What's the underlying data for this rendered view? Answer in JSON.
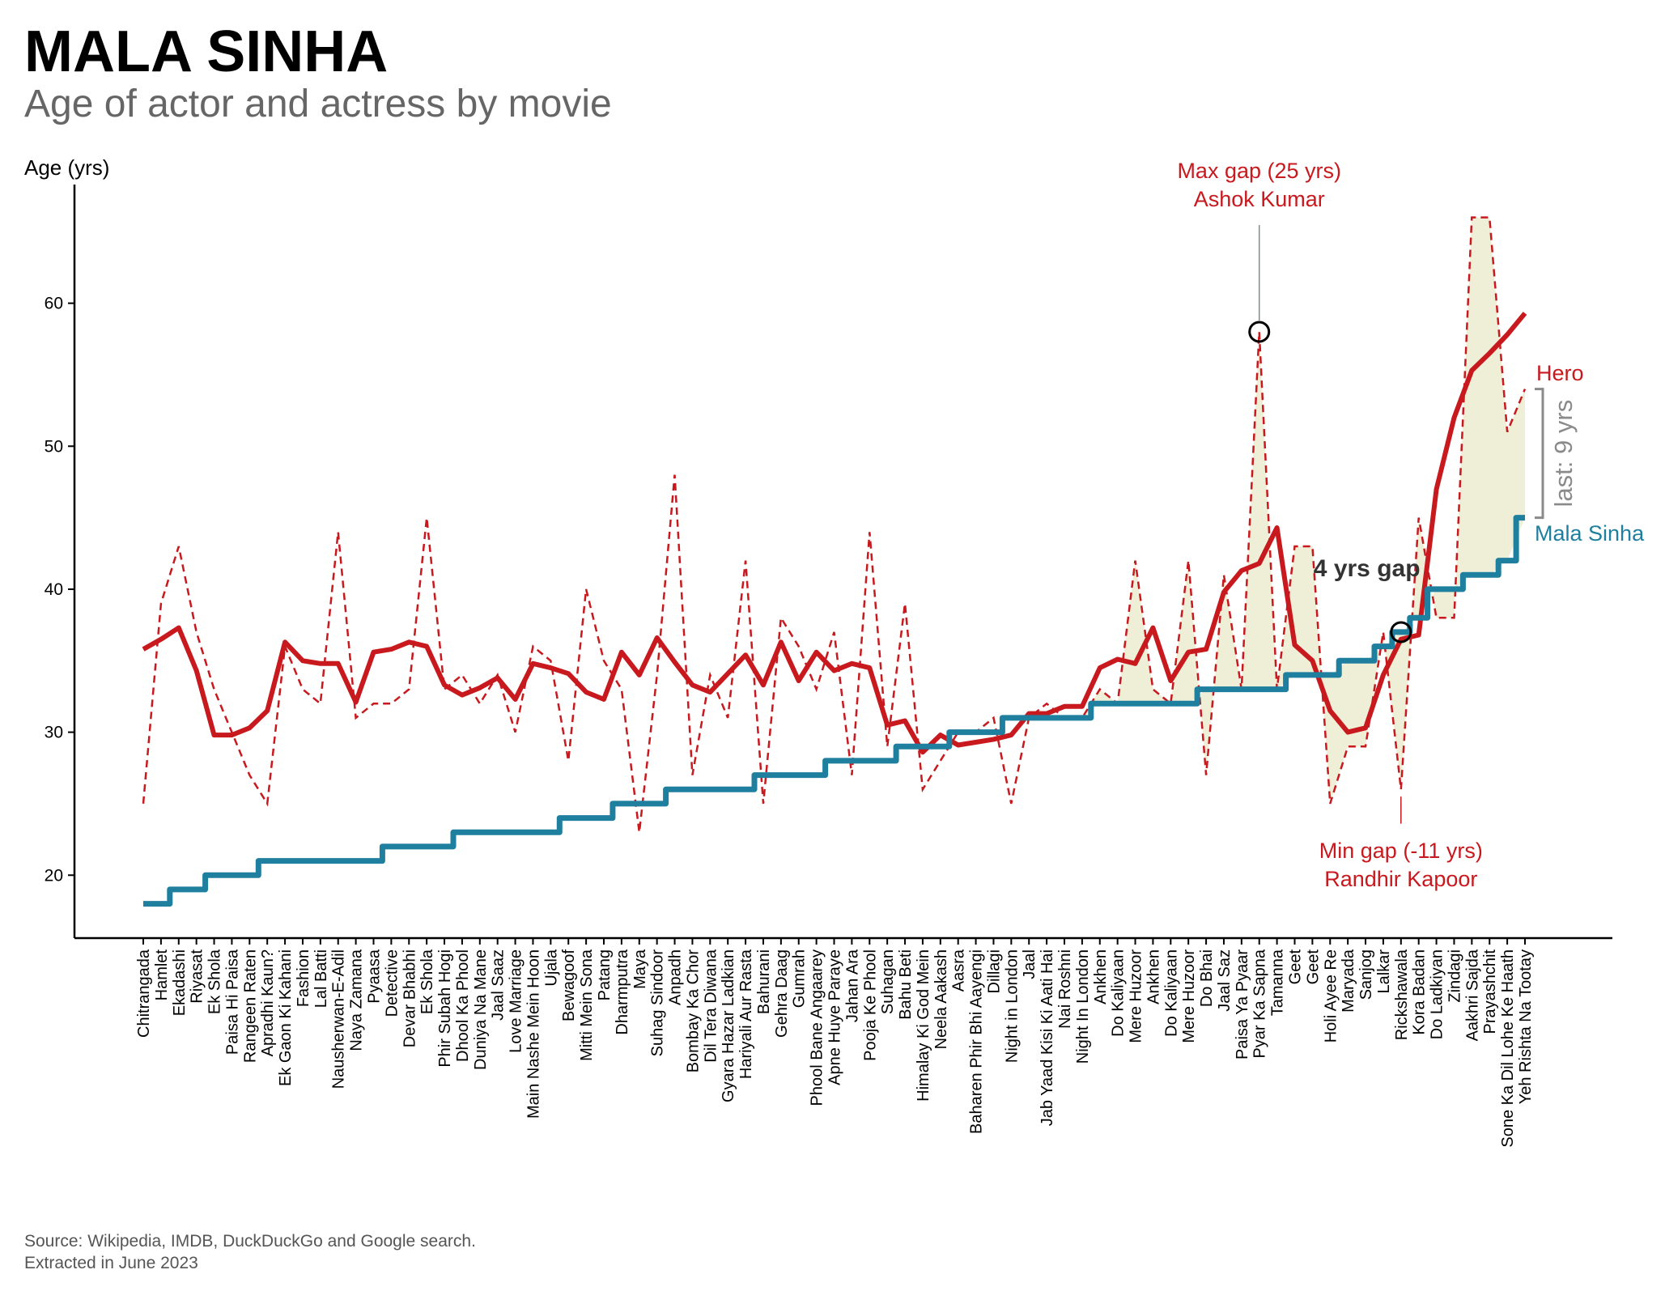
{
  "header": {
    "title": "MALA SINHA",
    "subtitle": "Age of actor and actress by movie"
  },
  "footer": {
    "source_line1": "Source: Wikipedia, IMDB, DuckDuckGo and Google search.",
    "source_line2": "Extracted in June 2023"
  },
  "annotations": {
    "max_gap_line1": "Max gap (25 yrs)",
    "max_gap_line2": "Ashok Kumar",
    "min_gap_line1": "Min gap (-11 yrs)",
    "min_gap_line2": "Randhir Kapoor",
    "hero_label": "Hero",
    "actress_label": "Mala Sinha",
    "gap_label": "4 yrs gap",
    "last_label": "last: 9 yrs"
  },
  "colors": {
    "hero": "#c8191e",
    "actress": "#1e7f9e",
    "gap_fill": "#efeed6",
    "axis": "#000000",
    "bracket": "#8a8a8a"
  },
  "chart_data": {
    "type": "line",
    "ylabel": "Age (yrs)",
    "xlabel": "",
    "ylim": [
      15.6,
      68.3
    ],
    "yticks": [
      20,
      30,
      40,
      50,
      60
    ],
    "grid": false,
    "categories": [
      "Chitrangada",
      "Hamlet",
      "Ekadashi",
      "Riyasat",
      "Ek Shola",
      "Paisa Hi Paisa",
      "Rangeen Raten",
      "Apradhi Kaun?",
      "Ek Gaon Ki Kahani",
      "Fashion",
      "Lal Batti",
      "Nausherwan-E-Adil",
      "Naya Zamana",
      "Pyaasa",
      "Detective",
      "Devar Bhabhi",
      "Ek Shola",
      "Phir Subah Hogi",
      "Dhool Ka Phool",
      "Duniya Na Mane",
      "Jaal Saaz",
      "Love Marriage",
      "Main Nashe Mein Hoon",
      "Ujala",
      "Bewagoof",
      "Mitti Mein Sona",
      "Patang",
      "Dharmputra",
      "Maya",
      "Suhag Sindoor",
      "Anpadh",
      "Bombay Ka Chor",
      "Dil Tera Diwana",
      "Gyara Hazar Ladkian",
      "Hariyali Aur Rasta",
      "Bahurani",
      "Gehra Daag",
      "Gumrah",
      "Phool Bane Angaarey",
      "Apne Huye Paraye",
      "Jahan Ara",
      "Pooja Ke Phool",
      "Suhagan",
      "Bahu Beti",
      "Himalay Ki God Mein",
      "Neela Aakash",
      "Aasra",
      "Baharen Phir Bhi Aayengi",
      "Dillagi",
      "Night in London",
      "Jaal",
      "Jab Yaad Kisi Ki Aati Hai",
      "Nai Roshni",
      "Night In London",
      "Ankhen",
      "Do Kaliyaan",
      "Mere Huzoor",
      "Ankhen",
      "Do Kaliyaan",
      "Mere Huzoor",
      "Do Bhai",
      "Jaal Saz",
      "Paisa Ya Pyaar",
      "Pyar Ka Sapna",
      "Tamanna",
      "Geet",
      "Geet",
      "Holi Ayee Re",
      "Maryada",
      "Sanjog",
      "Lalkar",
      "Rickshawala",
      "Kora Badan",
      "Do Ladkiyan",
      "Zindagi",
      "Aakhri Sajda",
      "Prayashchit",
      "Sone Ka Dil Lohe Ke Haath",
      "Yeh Rishta Na Tootay"
    ],
    "series": [
      {
        "name": "Hero",
        "style": "dashed",
        "values": [
          25,
          39,
          43,
          37,
          33,
          30,
          27,
          25,
          36,
          33,
          32,
          44,
          31,
          32,
          32,
          33,
          45,
          33,
          34,
          32,
          34,
          30,
          36,
          35,
          28,
          40,
          35,
          33,
          23,
          34,
          48,
          27,
          34,
          31,
          42,
          25,
          38,
          36,
          33,
          37,
          27,
          44,
          29,
          39,
          26,
          28,
          30,
          30,
          31,
          25,
          31,
          32,
          31,
          31,
          33,
          32,
          42,
          33,
          32,
          42,
          27,
          41,
          33,
          58,
          33,
          43,
          43,
          25,
          29,
          29,
          37,
          26,
          45,
          38,
          38,
          66,
          66,
          51,
          54
        ]
      },
      {
        "name": "Hero",
        "style": "rolling average",
        "values": [
          35.8,
          36.5,
          37.3,
          34.3,
          29.8,
          29.8,
          30.3,
          31.5,
          36.3,
          35.0,
          34.8,
          34.8,
          32.1,
          35.6,
          35.8,
          36.3,
          36.0,
          33.3,
          32.6,
          33.1,
          33.8,
          32.3,
          34.8,
          34.5,
          34.1,
          32.8,
          32.3,
          35.6,
          34.0,
          36.6,
          34.9,
          33.3,
          32.8,
          34.1,
          35.4,
          33.3,
          36.3,
          33.6,
          35.6,
          34.3,
          34.8,
          34.5,
          30.5,
          30.8,
          28.6,
          29.8,
          29.1,
          29.3,
          29.5,
          29.8,
          31.3,
          31.3,
          31.8,
          31.8,
          34.5,
          35.1,
          34.8,
          37.3,
          33.6,
          35.6,
          35.8,
          39.8,
          41.3,
          41.8,
          44.3,
          36.1,
          35.0,
          31.5,
          30.0,
          30.3,
          34.0,
          36.5,
          36.8,
          47.0,
          52.0,
          55.3,
          56.5,
          57.8,
          59.3
        ]
      },
      {
        "name": "Mala Sinha",
        "style": "solid",
        "values": [
          18,
          18,
          19,
          19,
          20,
          20,
          20,
          21,
          21,
          21,
          21,
          21,
          21,
          21,
          22,
          22,
          22,
          22,
          23,
          23,
          23,
          23,
          23,
          23,
          24,
          24,
          24,
          25,
          25,
          25,
          26,
          26,
          26,
          26,
          26,
          27,
          27,
          27,
          27,
          28,
          28,
          28,
          28,
          29,
          29,
          29,
          30,
          30,
          30,
          31,
          31,
          31,
          31,
          31,
          32,
          32,
          32,
          32,
          32,
          32,
          33,
          33,
          33,
          33,
          33,
          34,
          34,
          34,
          35,
          35,
          36,
          37,
          38,
          40,
          40,
          41,
          41,
          42,
          45
        ]
      }
    ],
    "legend": "direct labels at right end"
  }
}
